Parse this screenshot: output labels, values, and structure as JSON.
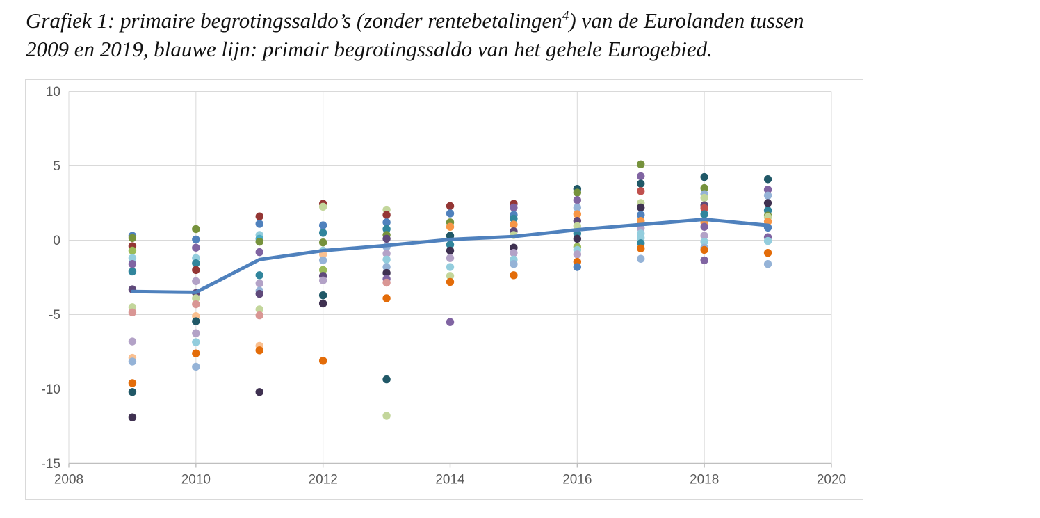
{
  "caption": {
    "line1_pre": "Grafiek 1: primaire begrotingssaldo’s (zonder rentebetalingen",
    "line1_sup": "4",
    "line1_post": ") van de Eurolanden tussen",
    "line2": "2009 en 2019, blauwe lijn: primair begrotingssaldo van het gehele Eurogebied."
  },
  "chart_data": {
    "type": "scatter",
    "title": "Grafiek 1: primaire begrotingssaldo’s (zonder rentebetalingen⁴) van de Eurolanden tussen 2009 en 2019, blauwe lijn: primair begrotingssaldo van het gehele Eurogebied.",
    "xlabel": "",
    "ylabel": "",
    "grid": true,
    "legend": "none",
    "x_axis": {
      "min": 2008,
      "max": 2020,
      "ticks": [
        2008,
        2010,
        2012,
        2014,
        2016,
        2018,
        2020
      ]
    },
    "y_axis": {
      "min": -15,
      "max": 10,
      "ticks": [
        10,
        5,
        0,
        -5,
        -10,
        -15
      ]
    },
    "style": {
      "gridline_color": "#d9d9d9",
      "axis_color": "#bfbfbf",
      "label_color": "#595959",
      "label_size": 19,
      "dot_radius": 5.7,
      "line_width": 5
    },
    "palette": {
      "blue": "#4F81BD",
      "blueLight": "#95B3D7",
      "red": "#C0504D",
      "redDark": "#943634",
      "rose": "#D99694",
      "green": "#9BBB59",
      "greenOlive": "#76923C",
      "greenLight": "#C3D69B",
      "purple": "#8064A2",
      "purpleDark": "#5F497A",
      "purpleDarkest": "#3F3151",
      "lavender": "#B3A2C7",
      "aqua": "#4BACC6",
      "aquaDark": "#31859C",
      "aquaDarkest": "#205867",
      "aquaLight": "#93CDDD",
      "orange": "#F79646",
      "orangeDark": "#E36C09",
      "orangeLight": "#FAC090"
    },
    "line_series": {
      "name": "Primair begrotingssaldo Eurogebied (blauwe lijn)",
      "color": "#4F81BD",
      "x": [
        2009,
        2010,
        2011,
        2012,
        2013,
        2014,
        2015,
        2016,
        2017,
        2018,
        2019
      ],
      "y": [
        -3.45,
        -3.5,
        -1.3,
        -0.7,
        -0.35,
        0.05,
        0.25,
        0.7,
        1.05,
        1.4,
        1.0
      ]
    },
    "points": [
      {
        "year": 2009,
        "dots": [
          {
            "v": 0.3,
            "c": "blue"
          },
          {
            "v": 0.15,
            "c": "greenOlive"
          },
          {
            "v": -0.4,
            "c": "redDark"
          },
          {
            "v": -0.7,
            "c": "green"
          },
          {
            "v": -1.2,
            "c": "aquaLight"
          },
          {
            "v": -1.6,
            "c": "purple"
          },
          {
            "v": -2.1,
            "c": "aquaDark"
          },
          {
            "v": -3.3,
            "c": "purpleDark"
          },
          {
            "v": -4.5,
            "c": "greenLight"
          },
          {
            "v": -4.85,
            "c": "rose"
          },
          {
            "v": -6.8,
            "c": "lavender"
          },
          {
            "v": -7.9,
            "c": "orangeLight"
          },
          {
            "v": -8.15,
            "c": "blueLight"
          },
          {
            "v": -9.6,
            "c": "orangeDark"
          },
          {
            "v": -10.2,
            "c": "aquaDarkest"
          },
          {
            "v": -11.9,
            "c": "purpleDarkest"
          }
        ]
      },
      {
        "year": 2010,
        "dots": [
          {
            "v": 0.75,
            "c": "greenOlive"
          },
          {
            "v": 0.05,
            "c": "blue"
          },
          {
            "v": -0.5,
            "c": "purple"
          },
          {
            "v": -1.2,
            "c": "aquaLight"
          },
          {
            "v": -1.55,
            "c": "aquaDark"
          },
          {
            "v": -2.0,
            "c": "redDark"
          },
          {
            "v": -2.75,
            "c": "lavender"
          },
          {
            "v": -3.55,
            "c": "purpleDark"
          },
          {
            "v": -3.9,
            "c": "greenLight"
          },
          {
            "v": -4.3,
            "c": "rose"
          },
          {
            "v": -5.1,
            "c": "orangeLight"
          },
          {
            "v": -5.45,
            "c": "aquaDarkest"
          },
          {
            "v": -6.25,
            "c": "lavender"
          },
          {
            "v": -6.85,
            "c": "aquaLight"
          },
          {
            "v": -7.6,
            "c": "orangeDark"
          },
          {
            "v": -8.5,
            "c": "blueLight"
          }
        ]
      },
      {
        "year": 2011,
        "dots": [
          {
            "v": 1.6,
            "c": "redDark"
          },
          {
            "v": 1.1,
            "c": "blue"
          },
          {
            "v": 0.35,
            "c": "aquaLight"
          },
          {
            "v": 0.1,
            "c": "aqua"
          },
          {
            "v": -0.1,
            "c": "greenOlive"
          },
          {
            "v": -0.8,
            "c": "purple"
          },
          {
            "v": -2.35,
            "c": "aquaDark"
          },
          {
            "v": -2.9,
            "c": "lavender"
          },
          {
            "v": -3.4,
            "c": "blueLight"
          },
          {
            "v": -3.6,
            "c": "purpleDark"
          },
          {
            "v": -4.65,
            "c": "greenLight"
          },
          {
            "v": -5.05,
            "c": "rose"
          },
          {
            "v": -7.1,
            "c": "orangeLight"
          },
          {
            "v": -7.4,
            "c": "orangeDark"
          },
          {
            "v": -10.2,
            "c": "purpleDarkest"
          }
        ]
      },
      {
        "year": 2012,
        "dots": [
          {
            "v": 2.45,
            "c": "redDark"
          },
          {
            "v": 2.25,
            "c": "greenLight"
          },
          {
            "v": 1.0,
            "c": "blue"
          },
          {
            "v": 0.5,
            "c": "aquaDark"
          },
          {
            "v": -0.15,
            "c": "greenOlive"
          },
          {
            "v": -0.7,
            "c": "aquaLight"
          },
          {
            "v": -0.95,
            "c": "orangeLight"
          },
          {
            "v": -1.35,
            "c": "blueLight"
          },
          {
            "v": -2.0,
            "c": "green"
          },
          {
            "v": -2.4,
            "c": "purpleDark"
          },
          {
            "v": -2.7,
            "c": "lavender"
          },
          {
            "v": -3.7,
            "c": "aquaDarkest"
          },
          {
            "v": -4.25,
            "c": "purpleDarkest"
          },
          {
            "v": -8.1,
            "c": "orangeDark"
          }
        ]
      },
      {
        "year": 2013,
        "dots": [
          {
            "v": 2.05,
            "c": "greenLight"
          },
          {
            "v": 1.7,
            "c": "redDark"
          },
          {
            "v": 1.2,
            "c": "blue"
          },
          {
            "v": 0.75,
            "c": "aquaDark"
          },
          {
            "v": 0.35,
            "c": "greenOlive"
          },
          {
            "v": 0.1,
            "c": "purpleDark"
          },
          {
            "v": -0.45,
            "c": "blueLight"
          },
          {
            "v": -0.9,
            "c": "lavender"
          },
          {
            "v": -1.3,
            "c": "aquaLight"
          },
          {
            "v": -1.8,
            "c": "blueLight"
          },
          {
            "v": -2.2,
            "c": "purpleDarkest"
          },
          {
            "v": -2.6,
            "c": "purple"
          },
          {
            "v": -2.85,
            "c": "rose"
          },
          {
            "v": -3.9,
            "c": "orangeDark"
          },
          {
            "v": -9.35,
            "c": "aquaDarkest"
          },
          {
            "v": -11.8,
            "c": "greenLight"
          }
        ]
      },
      {
        "year": 2014,
        "dots": [
          {
            "v": 2.3,
            "c": "redDark"
          },
          {
            "v": 1.8,
            "c": "blue"
          },
          {
            "v": 1.2,
            "c": "greenOlive"
          },
          {
            "v": 0.9,
            "c": "orange"
          },
          {
            "v": 0.3,
            "c": "aquaDarkest"
          },
          {
            "v": -0.3,
            "c": "aquaDark"
          },
          {
            "v": -0.7,
            "c": "purpleDarkest"
          },
          {
            "v": -1.2,
            "c": "lavender"
          },
          {
            "v": -1.8,
            "c": "aquaLight"
          },
          {
            "v": -2.4,
            "c": "greenLight"
          },
          {
            "v": -2.8,
            "c": "orangeDark"
          },
          {
            "v": -5.5,
            "c": "purple"
          }
        ]
      },
      {
        "year": 2015,
        "dots": [
          {
            "v": 2.45,
            "c": "redDark"
          },
          {
            "v": 2.2,
            "c": "purple"
          },
          {
            "v": 1.7,
            "c": "blue"
          },
          {
            "v": 1.45,
            "c": "aquaDark"
          },
          {
            "v": 1.05,
            "c": "orange"
          },
          {
            "v": 0.6,
            "c": "purpleDark"
          },
          {
            "v": 0.35,
            "c": "greenLight"
          },
          {
            "v": -0.5,
            "c": "purpleDarkest"
          },
          {
            "v": -0.85,
            "c": "lavender"
          },
          {
            "v": -1.3,
            "c": "aquaLight"
          },
          {
            "v": -1.6,
            "c": "blueLight"
          },
          {
            "v": -2.35,
            "c": "orangeDark"
          }
        ]
      },
      {
        "year": 2016,
        "dots": [
          {
            "v": 3.45,
            "c": "aquaDarkest"
          },
          {
            "v": 3.2,
            "c": "greenOlive"
          },
          {
            "v": 2.7,
            "c": "purple"
          },
          {
            "v": 2.2,
            "c": "blueLight"
          },
          {
            "v": 1.75,
            "c": "orange"
          },
          {
            "v": 1.3,
            "c": "purpleDark"
          },
          {
            "v": 0.95,
            "c": "greenLight"
          },
          {
            "v": 0.45,
            "c": "aquaDark"
          },
          {
            "v": 0.1,
            "c": "purpleDarkest"
          },
          {
            "v": -0.45,
            "c": "green"
          },
          {
            "v": -0.65,
            "c": "aquaLight"
          },
          {
            "v": -0.95,
            "c": "lavender"
          },
          {
            "v": -1.45,
            "c": "orangeDark"
          },
          {
            "v": -1.8,
            "c": "blue"
          }
        ]
      },
      {
        "year": 2017,
        "dots": [
          {
            "v": 5.1,
            "c": "greenOlive"
          },
          {
            "v": 4.3,
            "c": "purple"
          },
          {
            "v": 3.8,
            "c": "aquaDarkest"
          },
          {
            "v": 3.3,
            "c": "red"
          },
          {
            "v": 2.5,
            "c": "greenLight"
          },
          {
            "v": 2.2,
            "c": "purpleDarkest"
          },
          {
            "v": 1.7,
            "c": "blue"
          },
          {
            "v": 1.3,
            "c": "orange"
          },
          {
            "v": 0.8,
            "c": "lavender"
          },
          {
            "v": 0.45,
            "c": "aquaLight"
          },
          {
            "v": 0.15,
            "c": "aquaLight"
          },
          {
            "v": -0.2,
            "c": "aquaDark"
          },
          {
            "v": -0.55,
            "c": "orangeDark"
          },
          {
            "v": -1.25,
            "c": "blueLight"
          }
        ]
      },
      {
        "year": 2018,
        "dots": [
          {
            "v": 4.25,
            "c": "aquaDarkest"
          },
          {
            "v": 3.5,
            "c": "greenOlive"
          },
          {
            "v": 3.1,
            "c": "blueLight"
          },
          {
            "v": 2.85,
            "c": "greenLight"
          },
          {
            "v": 2.35,
            "c": "purpleDark"
          },
          {
            "v": 2.15,
            "c": "red"
          },
          {
            "v": 1.75,
            "c": "aquaDark"
          },
          {
            "v": 1.2,
            "c": "orange"
          },
          {
            "v": 0.9,
            "c": "purple"
          },
          {
            "v": 0.3,
            "c": "lavender"
          },
          {
            "v": -0.1,
            "c": "aquaLight"
          },
          {
            "v": -0.5,
            "c": "blueLight"
          },
          {
            "v": -0.65,
            "c": "orangeDark"
          },
          {
            "v": -1.35,
            "c": "purple"
          }
        ]
      },
      {
        "year": 2019,
        "dots": [
          {
            "v": 4.1,
            "c": "aquaDarkest"
          },
          {
            "v": 3.4,
            "c": "purple"
          },
          {
            "v": 3.0,
            "c": "blueLight"
          },
          {
            "v": 2.5,
            "c": "purpleDarkest"
          },
          {
            "v": 2.0,
            "c": "aquaDark"
          },
          {
            "v": 1.65,
            "c": "greenOlive"
          },
          {
            "v": 1.55,
            "c": "greenLight"
          },
          {
            "v": 1.25,
            "c": "orange"
          },
          {
            "v": 0.85,
            "c": "blue"
          },
          {
            "v": 0.2,
            "c": "purple"
          },
          {
            "v": -0.05,
            "c": "aquaLight"
          },
          {
            "v": -0.85,
            "c": "orangeDark"
          },
          {
            "v": -1.6,
            "c": "blueLight"
          }
        ]
      }
    ]
  }
}
